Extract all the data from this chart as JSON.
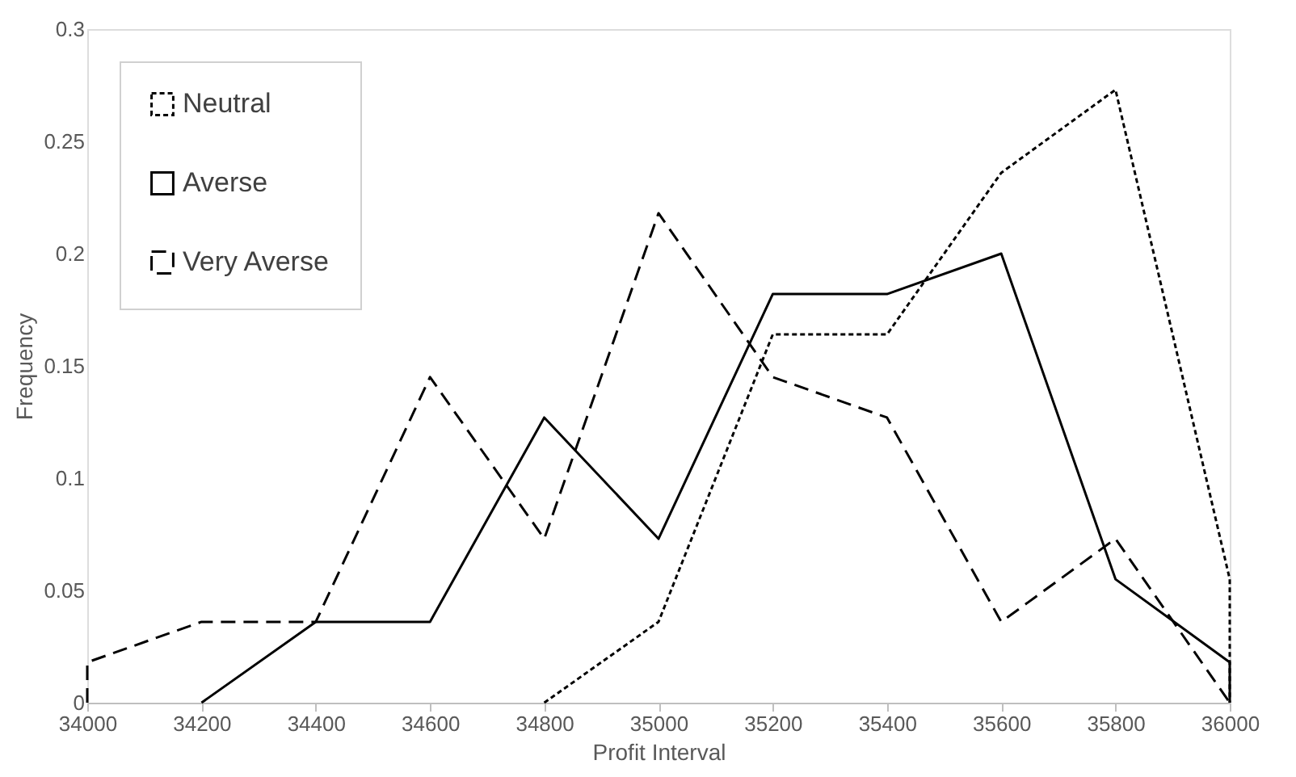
{
  "chart_data": {
    "type": "line",
    "xlabel": "Profit Interval",
    "ylabel": "Frequency",
    "xlim": [
      34000,
      36000
    ],
    "xticks": [
      34000,
      34200,
      34400,
      34600,
      34800,
      35000,
      35200,
      35400,
      35600,
      35800,
      36000
    ],
    "ylim": [
      0,
      0.3
    ],
    "yticks": [
      0,
      0.05,
      0.1,
      0.15,
      0.2,
      0.25,
      0.3
    ],
    "grid": false,
    "legend": "top left",
    "marker": "none",
    "series": [
      {
        "name": "Neutral",
        "color": "#000000",
        "line_style": "dotted",
        "x": [
          34800,
          35000,
          35200,
          35400,
          35600,
          35800,
          36000,
          36000
        ],
        "values": [
          0,
          0.036,
          0.164,
          0.164,
          0.236,
          0.273,
          0.055,
          0
        ]
      },
      {
        "name": "Averse",
        "color": "#000000",
        "line_style": "solid",
        "x": [
          34200,
          34400,
          34600,
          34800,
          35000,
          35200,
          35400,
          35600,
          35800,
          36000,
          36000
        ],
        "values": [
          0,
          0.036,
          0.036,
          0.127,
          0.073,
          0.182,
          0.182,
          0.2,
          0.055,
          0.018,
          0
        ]
      },
      {
        "name": "Very Averse",
        "color": "#000000",
        "line_style": "dashed",
        "x": [
          34000,
          34000,
          34200,
          34400,
          34600,
          34800,
          35000,
          35200,
          35400,
          35600,
          35800,
          36000
        ],
        "values": [
          0,
          0.018,
          0.036,
          0.036,
          0.145,
          0.073,
          0.218,
          0.145,
          0.127,
          0.036,
          0.073,
          0
        ]
      }
    ]
  }
}
